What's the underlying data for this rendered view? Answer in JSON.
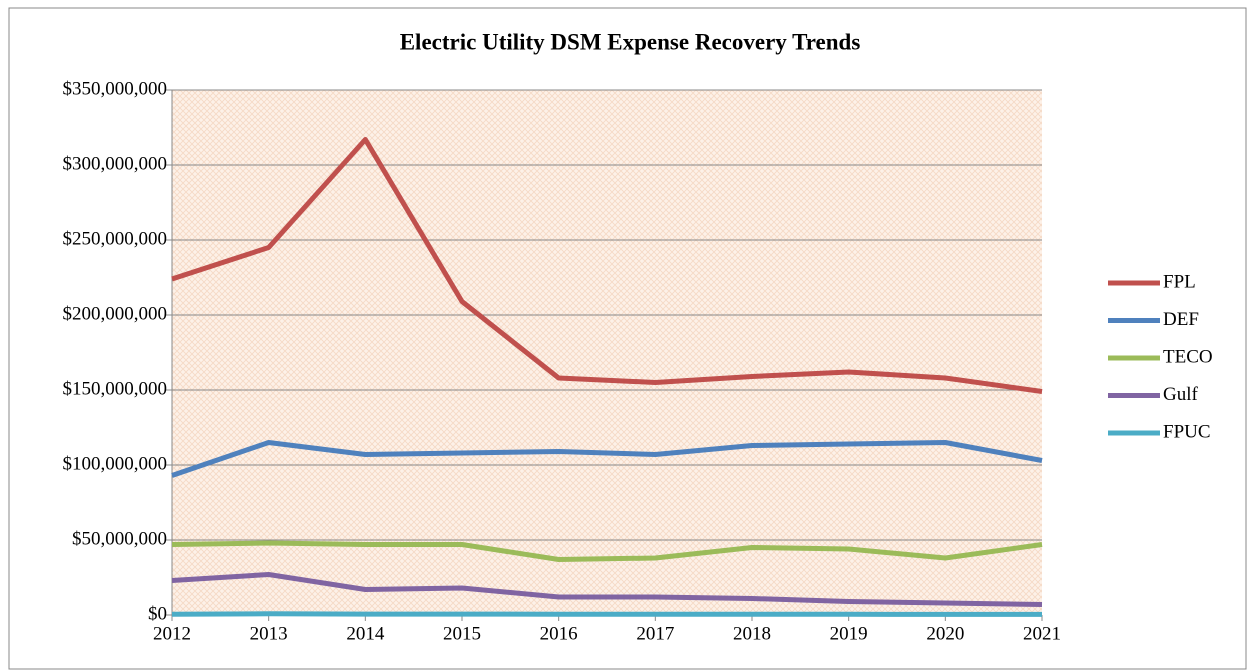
{
  "chart_data": {
    "type": "line",
    "title": "Electric Utility DSM Expense Recovery Trends",
    "x": [
      2012,
      2013,
      2014,
      2015,
      2016,
      2017,
      2018,
      2019,
      2020,
      2021
    ],
    "xlim": [
      2012,
      2021
    ],
    "xticks": [
      2012,
      2013,
      2014,
      2015,
      2016,
      2017,
      2018,
      2019,
      2020,
      2021
    ],
    "ylim": [
      0,
      350000000
    ],
    "yticks": [
      {
        "value": 0,
        "label": "$0"
      },
      {
        "value": 50000000,
        "label": "$50,000,000"
      },
      {
        "value": 100000000,
        "label": "$100,000,000"
      },
      {
        "value": 150000000,
        "label": "$150,000,000"
      },
      {
        "value": 200000000,
        "label": "$200,000,000"
      },
      {
        "value": 250000000,
        "label": "$250,000,000"
      },
      {
        "value": 300000000,
        "label": "$300,000,000"
      },
      {
        "value": 350000000,
        "label": "$350,000,000"
      }
    ],
    "grid": true,
    "legend": "right",
    "series": [
      {
        "name": "FPL",
        "color": "#c0504d",
        "values": [
          224000000,
          245000000,
          317000000,
          209000000,
          158000000,
          155000000,
          159000000,
          162000000,
          158000000,
          149000000
        ]
      },
      {
        "name": "DEF",
        "color": "#4f81bd",
        "values": [
          93000000,
          115000000,
          107000000,
          108000000,
          109000000,
          107000000,
          113000000,
          114000000,
          115000000,
          103000000
        ]
      },
      {
        "name": "TECO",
        "color": "#9bbb59",
        "values": [
          47000000,
          48000000,
          47000000,
          47000000,
          37000000,
          38000000,
          45000000,
          44000000,
          38000000,
          47000000
        ]
      },
      {
        "name": "Gulf",
        "color": "#8064a2",
        "values": [
          23000000,
          27000000,
          17000000,
          18000000,
          12000000,
          12000000,
          11000000,
          9000000,
          8000000,
          7000000
        ]
      },
      {
        "name": "FPUC",
        "color": "#4bacc6",
        "values": [
          500000,
          800000,
          600000,
          600000,
          500000,
          500000,
          500000,
          500000,
          400000,
          400000
        ]
      }
    ]
  }
}
